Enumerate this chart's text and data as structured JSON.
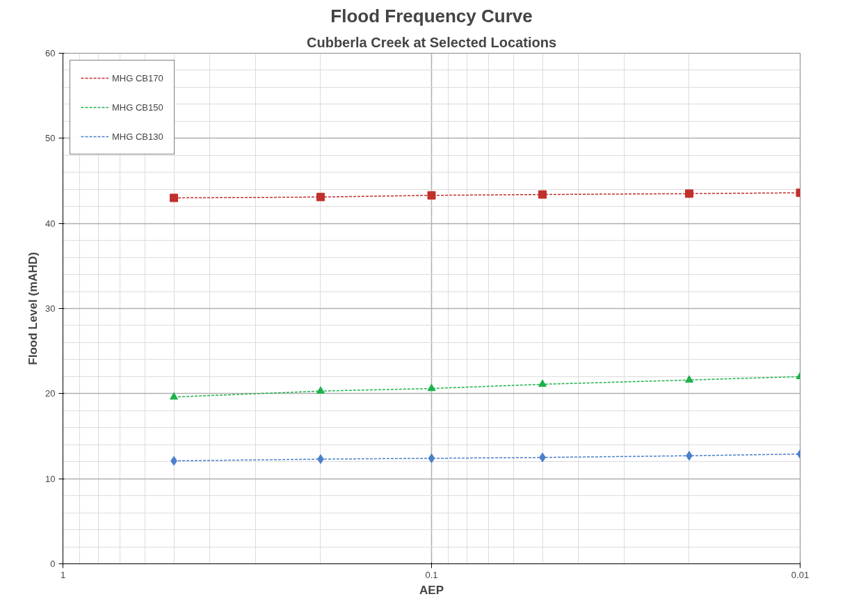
{
  "chart_data": {
    "type": "line",
    "title": "Flood Frequency Curve",
    "subtitle": "Cubberla Creek at Selected Locations",
    "xlabel": "AEP",
    "ylabel": "Flood Level (mAHD)",
    "x": [
      0.5,
      0.2,
      0.1,
      0.05,
      0.02,
      0.01
    ],
    "series": [
      {
        "name": "MHG CB170",
        "color": "#c0302c",
        "marker": "square",
        "values": [
          43.0,
          43.1,
          43.3,
          43.4,
          43.5,
          43.6
        ]
      },
      {
        "name": "MHG CB150",
        "color": "#1db24a",
        "marker": "triangle",
        "values": [
          19.6,
          20.3,
          20.6,
          21.1,
          21.6,
          22.0
        ]
      },
      {
        "name": "MHG CB130",
        "color": "#4a7fcb",
        "marker": "diamond",
        "values": [
          12.1,
          12.3,
          12.4,
          12.5,
          12.7,
          12.9
        ]
      }
    ],
    "log": "x",
    "xlim": [
      1,
      0.01
    ],
    "xticks": [
      1,
      0.1,
      0.01
    ],
    "ylim": [
      0,
      60
    ],
    "yticks": [
      0,
      10,
      20,
      30,
      40,
      50,
      60
    ],
    "grid": true,
    "legend": "top left",
    "line_style": "dashed"
  }
}
